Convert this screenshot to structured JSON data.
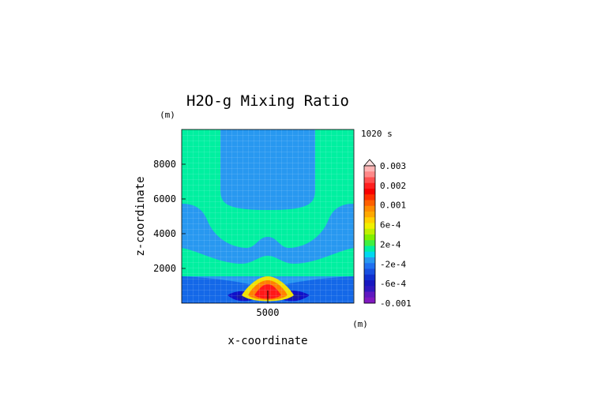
{
  "chart_data": {
    "type": "contour",
    "title": "H2O-g Mixing Ratio",
    "time_label": "1020 s",
    "xlabel": "x-coordinate",
    "ylabel": "z-coordinate",
    "x_unit": "(m)",
    "z_unit": "(m)",
    "xlim": [
      0,
      10000
    ],
    "zlim": [
      0,
      10000
    ],
    "x_ticks": [
      {
        "value": 5000,
        "label": "5000"
      }
    ],
    "z_ticks": [
      {
        "value": 2000,
        "label": "2000"
      },
      {
        "value": 4000,
        "label": "4000"
      },
      {
        "value": 6000,
        "label": "6000"
      },
      {
        "value": 8000,
        "label": "8000"
      }
    ],
    "field_colors": {
      "background_band": "#00f0a0",
      "negative_band": "#2898f0",
      "lower_negative_band": "#1468e8",
      "strong_negative": "#1010c8",
      "peak_outer": "#f0e000",
      "peak_mid": "#ff8000",
      "peak_core": "#ff1818",
      "grid_line": "#e0f4ff"
    },
    "colorbar": {
      "labels": [
        {
          "value": 0.003,
          "label": "0.003"
        },
        {
          "value": 0.002,
          "label": "0.002"
        },
        {
          "value": 0.001,
          "label": "0.001"
        },
        {
          "value": 0.0006,
          "label": "6e-4"
        },
        {
          "value": 0.0002,
          "label": "2e-4"
        },
        {
          "value": -0.0002,
          "label": "-2e-4"
        },
        {
          "value": -0.0006,
          "label": "-6e-4"
        },
        {
          "value": -0.001,
          "label": "-0.001"
        }
      ],
      "colors_top_to_bottom": [
        "#ffb4b4",
        "#ff8888",
        "#ff5050",
        "#ff2020",
        "#f80000",
        "#ff3000",
        "#ff6000",
        "#ff8c00",
        "#ffa800",
        "#ffd000",
        "#f0f000",
        "#c0f000",
        "#80f000",
        "#40f040",
        "#00f0a0",
        "#00d8f0",
        "#2898f0",
        "#2070f0",
        "#1850e0",
        "#1030d0",
        "#1818c0",
        "#3018c0",
        "#6018c0",
        "#8018c0"
      ]
    }
  }
}
